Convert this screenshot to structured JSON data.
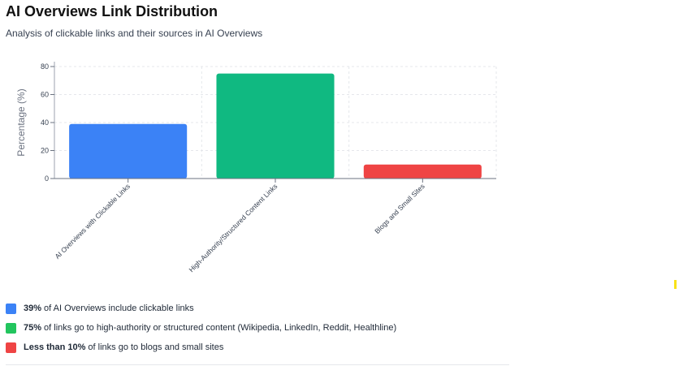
{
  "header": {
    "title": "AI Overviews Link Distribution",
    "subtitle": "Analysis of clickable links and their sources in AI Overviews"
  },
  "chart_data": {
    "type": "bar",
    "title": "",
    "xlabel": "",
    "ylabel": "Percentage (%)",
    "ylim": [
      0,
      80
    ],
    "yticks": [
      0,
      20,
      40,
      60,
      80
    ],
    "grid": true,
    "categories": [
      "AI Overviews with Clickable Links",
      "High-Authority/Structured Content Links",
      "Blogs and Small Sites"
    ],
    "values": [
      39,
      75,
      10
    ],
    "colors": [
      "#3b82f6",
      "#10b981",
      "#ef4444"
    ]
  },
  "legend": [
    {
      "bold": "39%",
      "text": "of AI Overviews include clickable links",
      "color": "#3b82f6"
    },
    {
      "bold": "75%",
      "text": "of links go to high-authority or structured content (Wikipedia, LinkedIn, Reddit, Healthline)",
      "color": "#22c55e"
    },
    {
      "bold": "Less than 10%",
      "text": "of links go to blogs and small sites",
      "color": "#ef4444"
    }
  ]
}
